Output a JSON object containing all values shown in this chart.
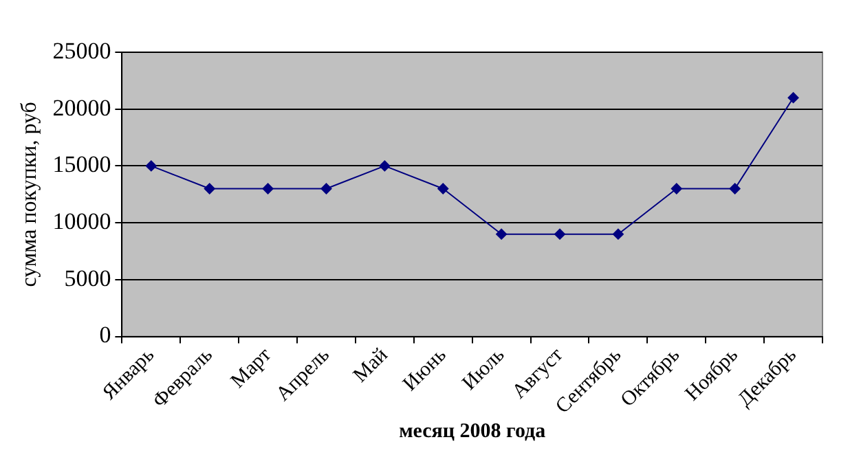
{
  "chart_data": {
    "type": "line",
    "xlabel": "месяц 2008 года",
    "ylabel": "сумма покупки, руб",
    "categories": [
      "Январь",
      "Февраль",
      "Март",
      "Апрель",
      "Май",
      "Июнь",
      "Июль",
      "Август",
      "Сентябрь",
      "Октябрь",
      "Ноябрь",
      "Декабрь"
    ],
    "series": [
      {
        "color": "#000080",
        "values": [
          15000,
          13000,
          13000,
          13000,
          15000,
          13000,
          9000,
          9000,
          9000,
          13000,
          13000,
          21000
        ]
      }
    ],
    "ylim": [
      0,
      25000
    ],
    "yticks": [
      0,
      5000,
      10000,
      15000,
      20000,
      25000
    ],
    "grid": "y",
    "legend": false,
    "marker": "diamond",
    "line_style": "solid"
  }
}
